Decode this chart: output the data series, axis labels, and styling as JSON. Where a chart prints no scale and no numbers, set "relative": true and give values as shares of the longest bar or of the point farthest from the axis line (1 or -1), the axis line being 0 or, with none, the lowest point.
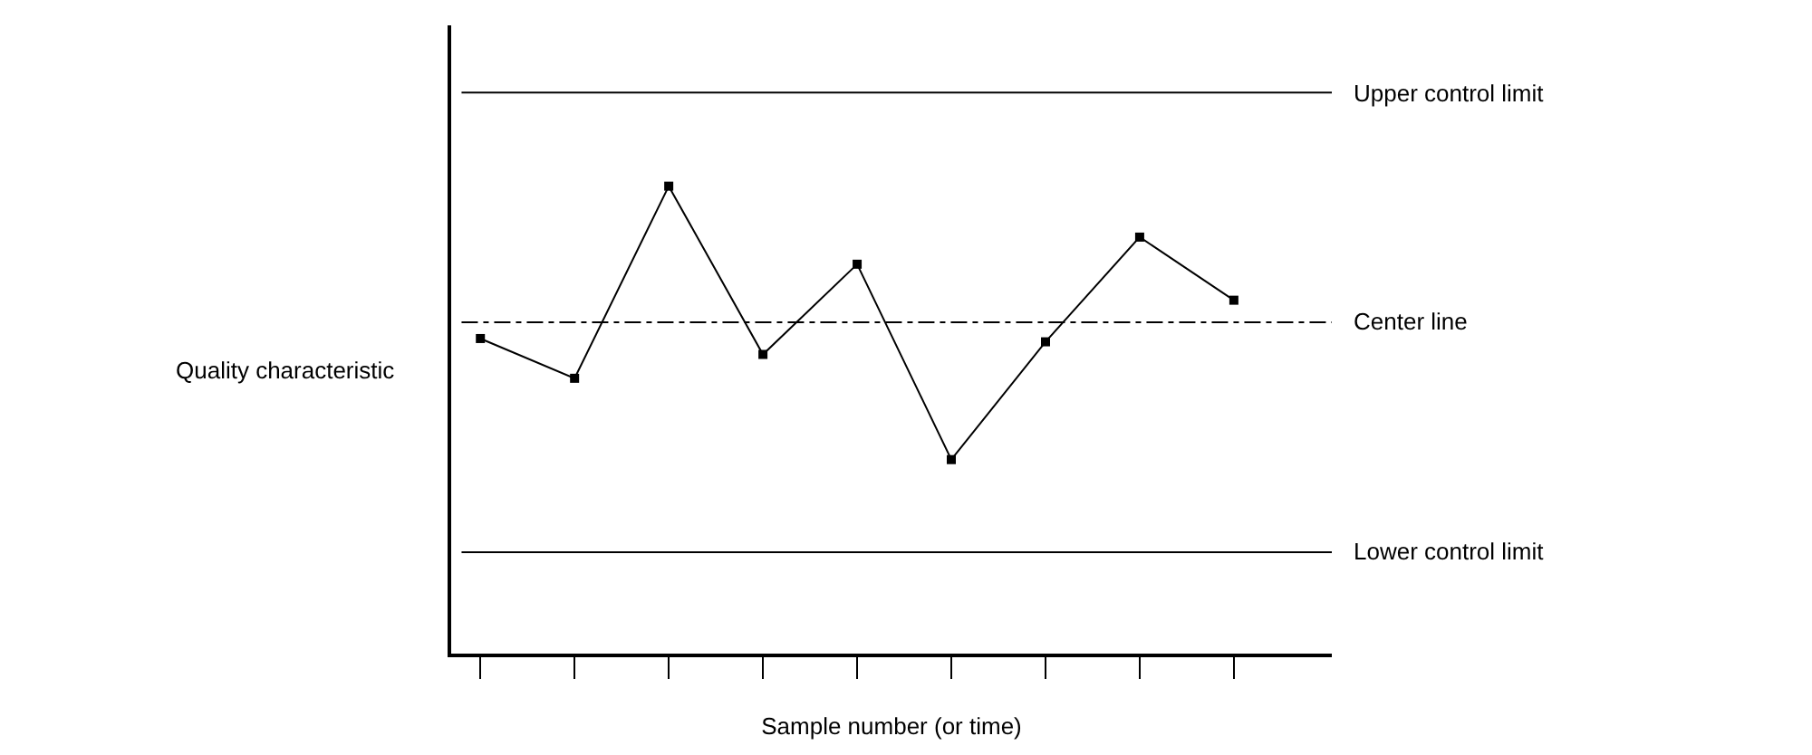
{
  "chart_data": {
    "type": "line",
    "relative": true,
    "xlabel": "Sample number (or time)",
    "ylabel": "Quality characteristic",
    "categories": [
      null,
      null,
      null,
      null,
      null,
      null,
      null,
      null,
      null
    ],
    "series": [
      {
        "color": "#000000",
        "values": [
          0.674,
          0.589,
          1,
          0.64,
          0.833,
          0.415,
          0.667,
          0.891,
          0.756
        ]
      }
    ],
    "marker": "square",
    "line_style": "solid",
    "ref_lines": [
      {
        "axis": "y",
        "value": 1.2,
        "label": "Upper control limit",
        "color": "#000000",
        "line_style": "solid"
      },
      {
        "axis": "y",
        "value": 0.709,
        "label": "Center line",
        "color": "#000000",
        "line_style": "dashed"
      },
      {
        "axis": "y",
        "value": 0.217,
        "label": "Lower control limit",
        "color": "#000000",
        "line_style": "solid"
      }
    ]
  }
}
